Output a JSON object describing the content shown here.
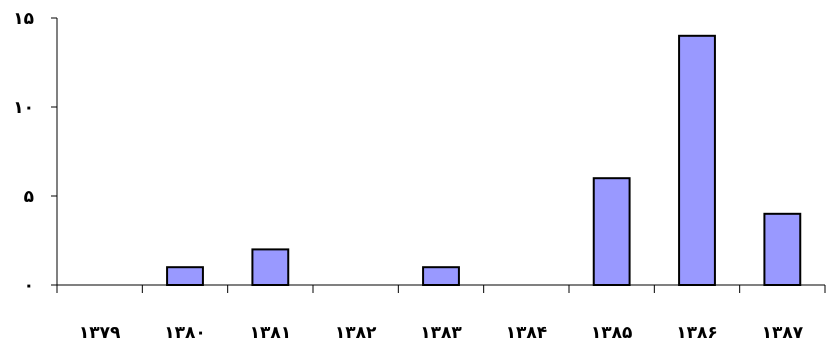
{
  "chart_data": {
    "type": "bar",
    "title": "",
    "xlabel": "",
    "ylabel": "",
    "categories": [
      "۱۳۷۹",
      "۱۳۸۰",
      "۱۳۸۱",
      "۱۳۸۲",
      "۱۳۸۳",
      "۱۳۸۴",
      "۱۳۸۵",
      "۱۳۸۶",
      "۱۳۸۷"
    ],
    "values": [
      0,
      1,
      2,
      0,
      1,
      0,
      6,
      14,
      4
    ],
    "ylim": [
      0,
      15
    ],
    "y_ticks": [
      0,
      5,
      10,
      15
    ],
    "y_tick_labels": [
      "۰",
      "۵",
      "۱۰",
      "۱۵"
    ],
    "grid": false,
    "legend": "none",
    "bar_color": "#9999ff",
    "bar_edge_color": "#000000"
  }
}
